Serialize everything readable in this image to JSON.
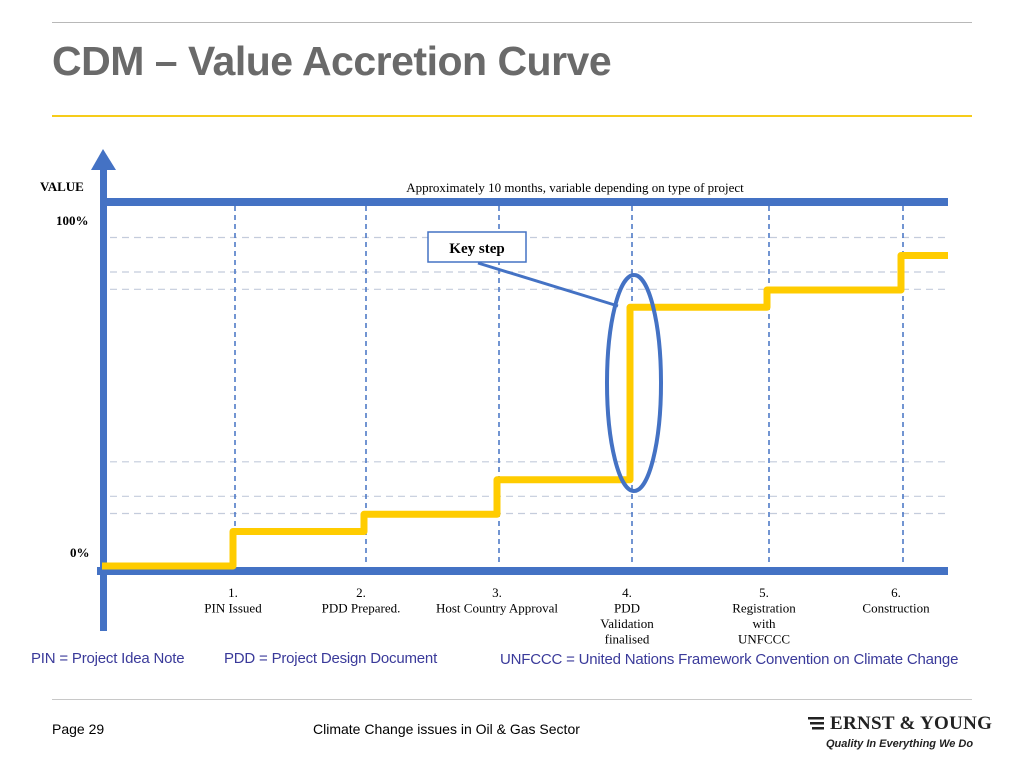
{
  "slide": {
    "title": "CDM – Value Accretion Curve",
    "footer_page": "Page 29",
    "footer_center": "Climate Change issues in Oil & Gas Sector",
    "logo_name": "ERNST & YOUNG",
    "logo_tagline": "Quality In Everything We Do"
  },
  "diagram": {
    "y_axis_label": "VALUE",
    "y_tick_top": "100%",
    "y_tick_bottom": "0%",
    "duration_note": "Approximately 10 months, variable depending on type of project",
    "callout": "Key step",
    "steps": [
      {
        "number": "1.",
        "lines": [
          "PIN Issued"
        ]
      },
      {
        "number": "2.",
        "lines": [
          "PDD Prepared."
        ]
      },
      {
        "number": "3.",
        "lines": [
          "Host Country Approval"
        ]
      },
      {
        "number": "4.",
        "lines": [
          "PDD",
          "Validation",
          "finalised"
        ]
      },
      {
        "number": "5.",
        "lines": [
          "Registration",
          "with",
          "UNFCCC"
        ]
      },
      {
        "number": "6.",
        "lines": [
          "Construction"
        ]
      }
    ],
    "value_levels_pct": [
      0,
      10,
      15,
      25,
      75,
      80,
      90
    ],
    "colors": {
      "axis": "#4472c4",
      "curve": "#ffcc00",
      "gridline": "#c4ccdc",
      "accent_yellow": "#f6cc1a"
    }
  },
  "notes": {
    "pin": "PIN = Project Idea Note",
    "pdd": "PDD = Project Design Document",
    "unfccc": "UNFCCC = United Nations Framework Convention on Climate Change"
  }
}
